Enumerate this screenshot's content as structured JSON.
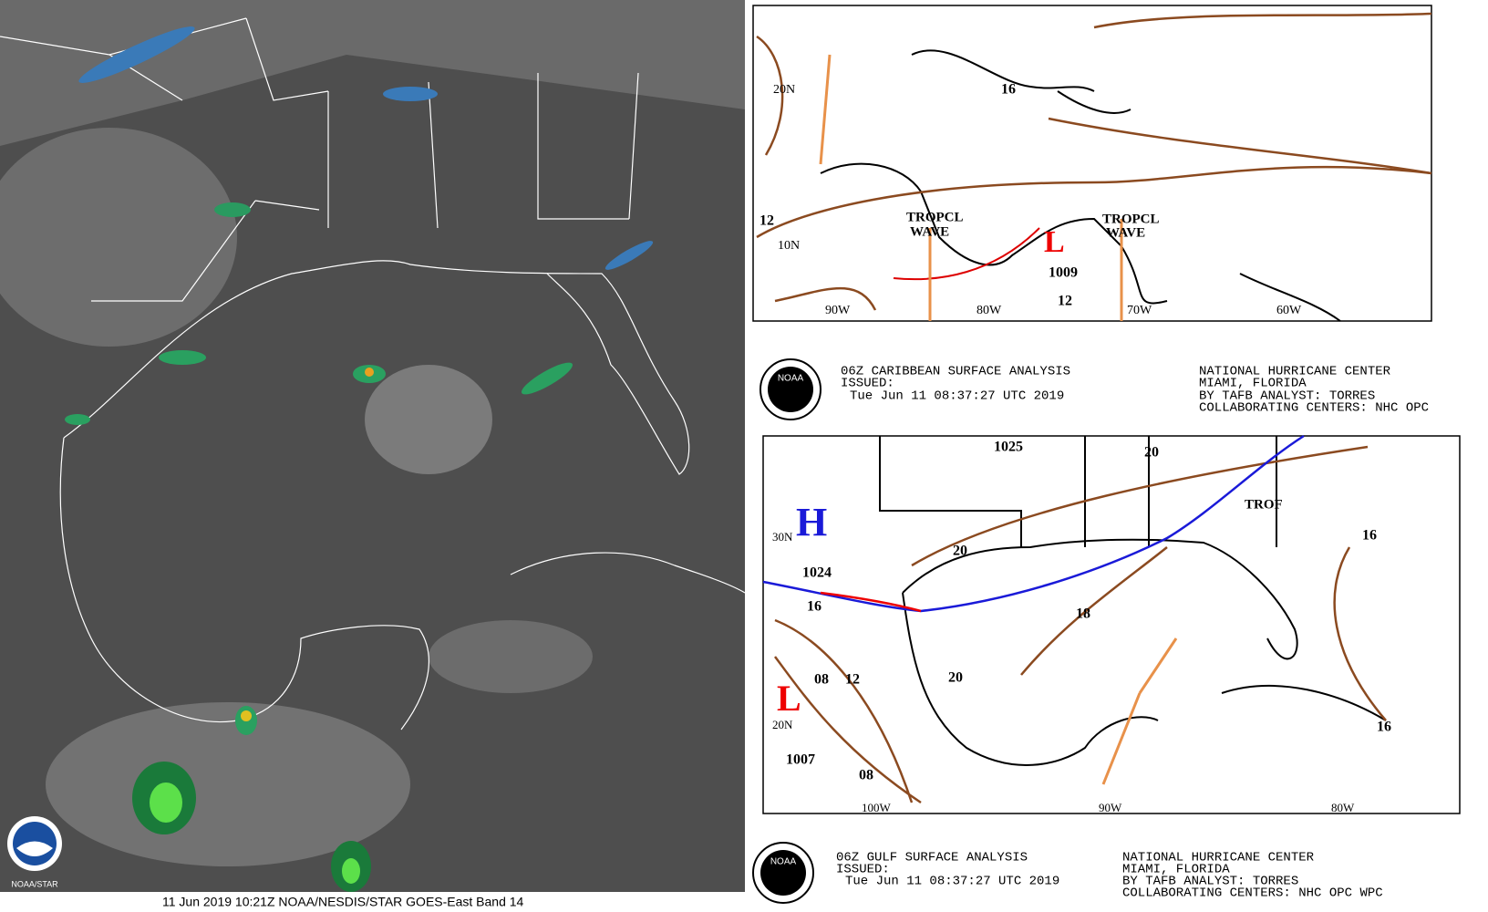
{
  "satellite": {
    "caption": "11 Jun 2019 10:21Z NOAA/NESDIS/STAR GOES-East Band 14",
    "logo_text": "NOAA/STAR"
  },
  "caribbean": {
    "labels": [
      "20N",
      "10N",
      "90W",
      "80W",
      "70W",
      "60W",
      "TROPCL",
      "WAVE",
      "TROPCL",
      "WAVE",
      "L",
      "1009",
      "12",
      "16",
      "12"
    ],
    "header": {
      "title": "06Z CARIBBEAN SURFACE ANALYSIS",
      "issued": "ISSUED:",
      "time": "Tue Jun 11 08:37:27 UTC 2019",
      "center": "NATIONAL HURRICANE CENTER",
      "city": "MIAMI, FLORIDA",
      "analyst": "BY TAFB ANALYST: TORRES",
      "collab": "COLLABORATING CENTERS: NHC OPC"
    },
    "logo": "NOAA"
  },
  "gulf": {
    "labels": [
      "H",
      "1024",
      "16",
      "1025",
      "TROF",
      "20",
      "20",
      "18",
      "16",
      "16",
      "L",
      "08",
      "12",
      "20",
      "1007",
      "08",
      "30N",
      "20N",
      "100W",
      "90W",
      "80W"
    ],
    "header": {
      "title": "06Z GULF SURFACE ANALYSIS",
      "issued": "ISSUED:",
      "time": "Tue Jun 11 08:37:27 UTC 2019",
      "center": "NATIONAL HURRICANE CENTER",
      "city": "MIAMI, FLORIDA",
      "analyst": "BY TAFB ANALYST: TORRES",
      "collab": "COLLABORATING CENTERS: NHC OPC WPC"
    },
    "logo": "NOAA"
  }
}
